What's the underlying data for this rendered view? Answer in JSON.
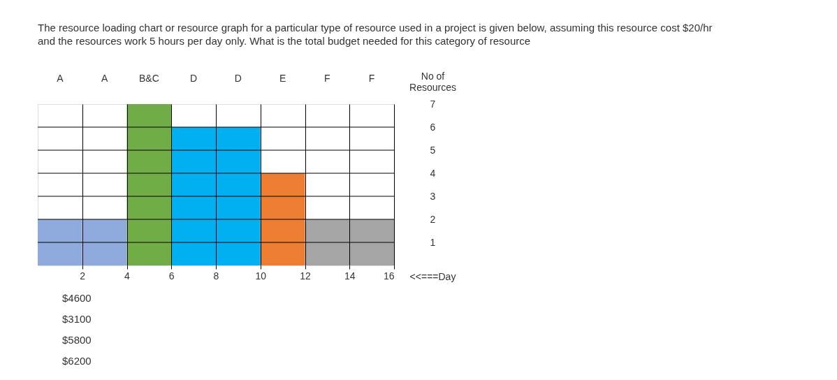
{
  "chart_data": {
    "type": "bar",
    "title": "The resource loading chart or resource graph for a particular type of resource used in a project is given below, assuming this resource cost  $20/hr and the resources work 5 hours per day only. What is the total budget needed for this category of resource",
    "categories": [
      "A",
      "A",
      "B&C",
      "D",
      "D",
      "E",
      "F",
      "F"
    ],
    "values": [
      2,
      2,
      7,
      6,
      6,
      4,
      2,
      2
    ],
    "colors": [
      "#8faadc",
      "#8faadc",
      "#70ad47",
      "#00b0f0",
      "#00b0f0",
      "#ed7d31",
      "#a5a5a5",
      "#a5a5a5"
    ],
    "ylabel": "No of Resources",
    "ylim": [
      0,
      7
    ],
    "yticks": [
      1,
      2,
      3,
      4,
      5,
      6,
      7
    ],
    "x2label": "<<===Day",
    "x2lim": [
      0,
      16
    ],
    "x2ticks": [
      2,
      4,
      6,
      8,
      10,
      12,
      14,
      16
    ],
    "grid": true,
    "legend": false,
    "annotations": [
      "$4600",
      "$3100",
      "$5800",
      "$6200"
    ]
  }
}
